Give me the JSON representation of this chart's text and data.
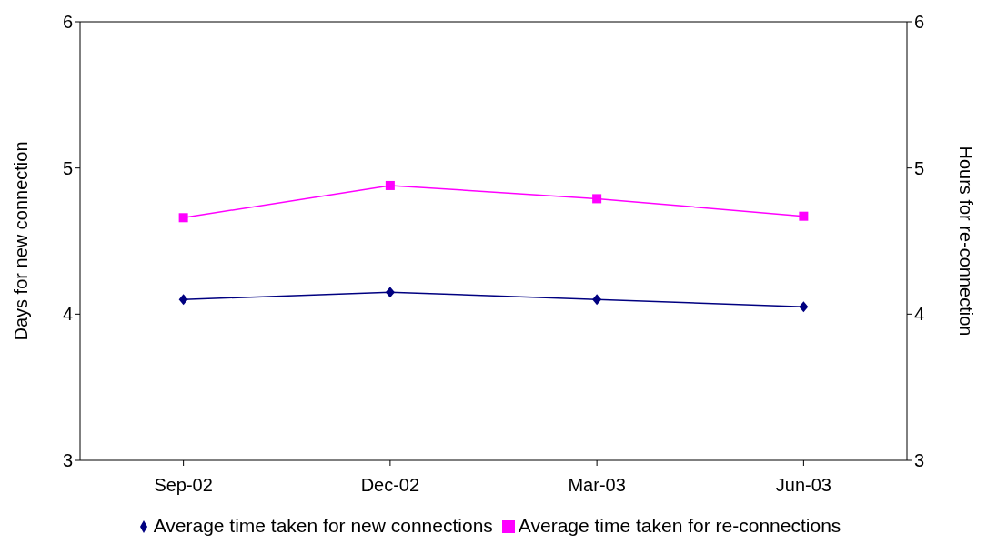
{
  "chart_data": {
    "type": "line",
    "categories": [
      "Sep-02",
      "Dec-02",
      "Mar-03",
      "Jun-03"
    ],
    "series": [
      {
        "name": "Average time taken for new connections",
        "color": "#000080",
        "marker": "diamond",
        "values": [
          4.1,
          4.15,
          4.1,
          4.05
        ]
      },
      {
        "name": "Average time taken for re-connections",
        "color": "#ff00ff",
        "marker": "square",
        "axis": "y2",
        "values": [
          4.66,
          4.88,
          4.79,
          4.67
        ]
      }
    ],
    "ylabel": "Days for new connection",
    "y2label": "Hours for re-connection",
    "ylim": [
      3,
      6
    ],
    "yticks": [
      3,
      4,
      5,
      6
    ],
    "y2lim": [
      3,
      6
    ],
    "y2ticks": [
      3,
      4,
      5,
      6
    ],
    "grid": false,
    "legend": "bottom"
  }
}
